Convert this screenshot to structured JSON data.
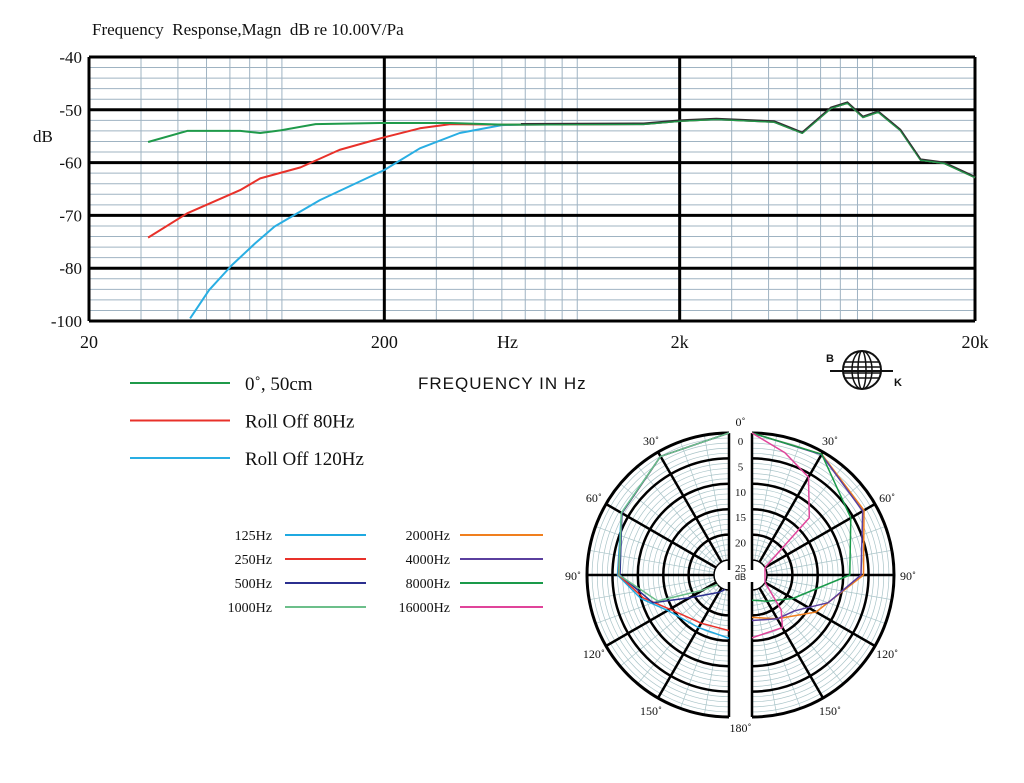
{
  "chart_data": [
    {
      "type": "line",
      "title": "Frequency  Response,Magn  dB re 10.00V/Pa",
      "ylabel": "dB",
      "xlabel": "FREQUENCY IN Hz",
      "x_unit_label": "Hz",
      "x_scale": "log",
      "xlim": [
        20,
        20000
      ],
      "ylim": [
        -100,
        -40
      ],
      "grid": true,
      "legend_position": "bottom-left",
      "xticks": [
        {
          "value": 20,
          "label": "20"
        },
        {
          "value": 200,
          "label": "200"
        },
        {
          "value": 2000,
          "label": "2k"
        },
        {
          "value": 20000,
          "label": "20k"
        }
      ],
      "yticks": [
        -40,
        -50,
        -60,
        -70,
        -80,
        -100
      ],
      "ytick_labels": [
        "-40",
        "-50",
        "-60",
        "-70",
        "-80",
        "-100"
      ],
      "shared_high_band": [
        [
          580,
          -52.8
        ],
        [
          1510,
          -52.7
        ],
        [
          2030,
          -52.1
        ],
        [
          2660,
          -51.8
        ],
        [
          4180,
          -52.3
        ],
        [
          5200,
          -54.4
        ],
        [
          6500,
          -49.7
        ],
        [
          7400,
          -48.7
        ],
        [
          8350,
          -51.4
        ],
        [
          9400,
          -50.4
        ],
        [
          11200,
          -53.9
        ],
        [
          13100,
          -59.5
        ],
        [
          15700,
          -60.1
        ],
        [
          20000,
          -62.8
        ]
      ],
      "series": [
        {
          "name": "0˚, 50cm",
          "color": "#1f9a4a",
          "points": [
            [
              31.7,
              -56.1
            ],
            [
              43,
              -54
            ],
            [
              65,
              -54
            ],
            [
              76,
              -54.4
            ],
            [
              89,
              -53.9
            ],
            [
              117,
              -52.7
            ],
            [
              193,
              -52.5
            ],
            [
              335,
              -52.5
            ],
            [
              500,
              -52.8
            ]
          ]
        },
        {
          "name": "Roll Off  80Hz",
          "color": "#e8312a",
          "points": [
            [
              31.7,
              -74.2
            ],
            [
              43,
              -69.6
            ],
            [
              65,
              -65.2
            ],
            [
              76,
              -63
            ],
            [
              104,
              -60.9
            ],
            [
              141,
              -57.6
            ],
            [
              200,
              -55.2
            ],
            [
              264,
              -53.5
            ],
            [
              335,
              -52.7
            ],
            [
              500,
              -52.8
            ]
          ]
        },
        {
          "name": "Roll Off  120Hz",
          "color": "#29aee3",
          "points": [
            [
              44,
              -99
            ],
            [
              51,
              -88.3
            ],
            [
              61,
              -79.4
            ],
            [
              73,
              -75.3
            ],
            [
              85,
              -72.1
            ],
            [
              121,
              -67.1
            ],
            [
              200,
              -61.4
            ],
            [
              264,
              -57.3
            ],
            [
              360,
              -54.4
            ],
            [
              500,
              -52.9
            ]
          ]
        }
      ]
    },
    {
      "type": "polar",
      "radial_unit": "dB",
      "radial_ticks": [
        "0",
        "5",
        "10",
        "15",
        "20",
        "25"
      ],
      "angle_ticks": [
        "0˚",
        "30˚",
        "60˚",
        "90˚",
        "120˚",
        "150˚",
        "180˚"
      ],
      "angle_ticks_side": [
        "30˚",
        "60˚",
        "90˚",
        "120˚",
        "150˚"
      ],
      "series": [
        {
          "name": "125Hz",
          "color": "#1fa9e1",
          "side": "left",
          "points": [
            [
              0,
              0
            ],
            [
              30,
              1
            ],
            [
              60,
              3.5
            ],
            [
              90,
              6
            ],
            [
              105,
              10
            ],
            [
              120,
              14
            ],
            [
              150,
              16
            ],
            [
              180,
              15.5
            ]
          ]
        },
        {
          "name": "250Hz",
          "color": "#e8312a",
          "side": "left",
          "points": [
            [
              0,
              0
            ],
            [
              30,
              1
            ],
            [
              60,
              3.6
            ],
            [
              90,
              6.2
            ],
            [
              105,
              10.5
            ],
            [
              120,
              14.5
            ],
            [
              150,
              17
            ],
            [
              180,
              17
            ]
          ]
        },
        {
          "name": "500Hz",
          "color": "#2b2f8f",
          "side": "left",
          "points": [
            [
              0,
              0
            ],
            [
              30,
              1
            ],
            [
              60,
              3.6
            ],
            [
              90,
              6.5
            ],
            [
              110,
              12
            ],
            [
              120,
              19
            ],
            [
              150,
              24
            ],
            [
              165,
              25
            ]
          ]
        },
        {
          "name": "1000Hz",
          "color": "#6cbf8a",
          "side": "left",
          "points": [
            [
              0,
              0
            ],
            [
              30,
              1
            ],
            [
              60,
              3.5
            ],
            [
              90,
              6.3
            ],
            [
              110,
              13
            ],
            [
              120,
              22
            ],
            [
              130,
              25
            ]
          ]
        },
        {
          "name": "2000Hz",
          "color": "#f07f1e",
          "side": "right",
          "points": [
            [
              0,
              0
            ],
            [
              30,
              0.5
            ],
            [
              60,
              2.5
            ],
            [
              90,
              6
            ],
            [
              120,
              13.4
            ],
            [
              150,
              18
            ],
            [
              180,
              19.6
            ]
          ]
        },
        {
          "name": "4000Hz",
          "color": "#5a3f9e",
          "side": "right",
          "points": [
            [
              0,
              0
            ],
            [
              30,
              0.6
            ],
            [
              60,
              2.8
            ],
            [
              90,
              6.5
            ],
            [
              110,
              12
            ],
            [
              130,
              17
            ],
            [
              150,
              18
            ],
            [
              180,
              19
            ]
          ]
        },
        {
          "name": "8000Hz",
          "color": "#1a9a4a",
          "side": "right",
          "points": [
            [
              0,
              0
            ],
            [
              30,
              0.5
            ],
            [
              60,
              5.5
            ],
            [
              90,
              8.7
            ],
            [
              120,
              18.7
            ],
            [
              150,
              22
            ],
            [
              180,
              23
            ]
          ]
        },
        {
          "name": "16000Hz",
          "color": "#e0449a",
          "side": "right",
          "points": [
            [
              0,
              0
            ],
            [
              15,
              3
            ],
            [
              30,
              5.7
            ],
            [
              45,
              12
            ],
            [
              60,
              25
            ],
            [
              120,
              25
            ],
            [
              140,
              19
            ],
            [
              150,
              16
            ],
            [
              180,
              15.6
            ]
          ]
        }
      ]
    }
  ],
  "logo": {
    "left": "B",
    "right": "K"
  }
}
